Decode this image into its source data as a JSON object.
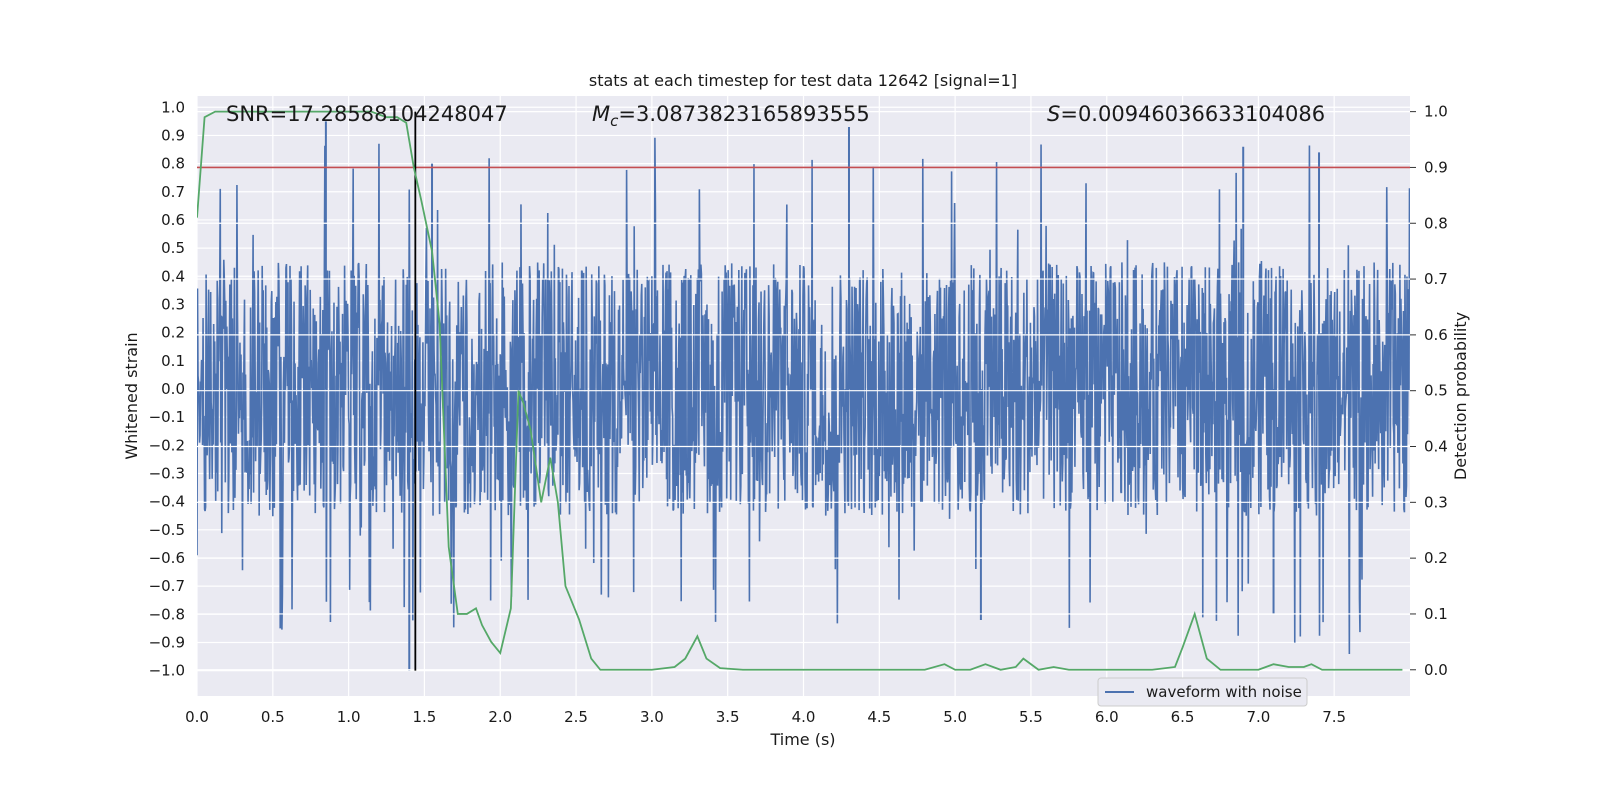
{
  "chart_data": {
    "type": "line",
    "title": "stats at each timestep for test data 12642 [signal=1]",
    "xlabel": "Time (s)",
    "ylabel_left": "Whitened strain",
    "ylabel_right": "Detection probability",
    "xlim": [
      0.0,
      8.0
    ],
    "ylim_left": [
      -1.09,
      1.04
    ],
    "ylim_right": [
      -0.047,
      1.028
    ],
    "x_ticks": [
      "0.0",
      "0.5",
      "1.0",
      "1.5",
      "2.0",
      "2.5",
      "3.0",
      "3.5",
      "4.0",
      "4.5",
      "5.0",
      "5.5",
      "6.0",
      "6.5",
      "7.0",
      "7.5"
    ],
    "y_left_ticks": [
      "1.0",
      "0.9",
      "0.8",
      "0.7",
      "0.6",
      "0.5",
      "0.4",
      "0.3",
      "0.2",
      "0.1",
      "0.0",
      "-0.1",
      "-0.2",
      "-0.3",
      "-0.4",
      "-0.5",
      "-0.6",
      "-0.7",
      "-0.8",
      "-0.9",
      "-1.0"
    ],
    "y_right_ticks": [
      "1.0",
      "0.9",
      "0.8",
      "0.7",
      "0.6",
      "0.5",
      "0.4",
      "0.3",
      "0.2",
      "0.1",
      "0.0"
    ],
    "annotations": {
      "snr": "SNR=17.28588104248047",
      "mc_symbol": "M",
      "mc_sub": "c",
      "mc_value": "=3.0873823165893555",
      "s_symbol": "S",
      "s_value": "=0.00946036633104086"
    },
    "threshold": 0.9,
    "marker_time": 1.44,
    "legend": [
      "waveform with noise"
    ],
    "series": [
      {
        "name": "waveform with noise",
        "color": "#4c72b0",
        "envelope": "noise band roughly -0.45 to 0.45 with spikes reaching about ±1.0",
        "peaks": [
          {
            "x": 0.55,
            "y": -0.85
          },
          {
            "x": 0.85,
            "y": 0.95
          },
          {
            "x": 1.4,
            "y": -1.0
          },
          {
            "x": 1.55,
            "y": 0.8
          },
          {
            "x": 4.3,
            "y": 0.93
          },
          {
            "x": 5.17,
            "y": -0.82
          },
          {
            "x": 6.9,
            "y": 0.86
          },
          {
            "x": 7.1,
            "y": -0.8
          },
          {
            "x": 7.4,
            "y": 0.84
          }
        ]
      },
      {
        "name": "detection probability",
        "color": "#55a868",
        "x": [
          0.0,
          0.05,
          0.12,
          0.2,
          0.5,
          0.8,
          1.0,
          1.15,
          1.25,
          1.32,
          1.38,
          1.43,
          1.48,
          1.55,
          1.6,
          1.66,
          1.72,
          1.78,
          1.84,
          1.88,
          1.94,
          2.0,
          2.07,
          2.12,
          2.15,
          2.2,
          2.27,
          2.33,
          2.38,
          2.43,
          2.52,
          2.6,
          2.66,
          2.8,
          3.0,
          3.15,
          3.22,
          3.3,
          3.36,
          3.45,
          3.6,
          4.0,
          4.5,
          4.8,
          4.93,
          5.0,
          5.1,
          5.2,
          5.3,
          5.4,
          5.45,
          5.55,
          5.65,
          5.75,
          5.85,
          6.0,
          6.15,
          6.3,
          6.45,
          6.5,
          6.58,
          6.66,
          6.75,
          7.0,
          7.1,
          7.2,
          7.3,
          7.35,
          7.42,
          7.6,
          7.95
        ],
        "y": [
          0.81,
          0.99,
          1.0,
          1.0,
          1.0,
          1.0,
          1.0,
          1.0,
          0.99,
          0.99,
          0.98,
          0.9,
          0.84,
          0.75,
          0.62,
          0.22,
          0.1,
          0.1,
          0.11,
          0.08,
          0.05,
          0.03,
          0.11,
          0.5,
          0.48,
          0.43,
          0.3,
          0.38,
          0.3,
          0.15,
          0.09,
          0.02,
          0.0,
          0.0,
          0.0,
          0.005,
          0.02,
          0.06,
          0.02,
          0.003,
          0.0,
          0.0,
          0.0,
          0.0,
          0.01,
          0.0,
          0.0,
          0.01,
          0.0,
          0.005,
          0.02,
          0.0,
          0.005,
          0.0,
          0.0,
          0.0,
          0.0,
          0.0,
          0.005,
          0.04,
          0.1,
          0.02,
          0.0,
          0.0,
          0.01,
          0.005,
          0.005,
          0.01,
          0.0,
          0.0,
          0.0
        ]
      }
    ]
  }
}
